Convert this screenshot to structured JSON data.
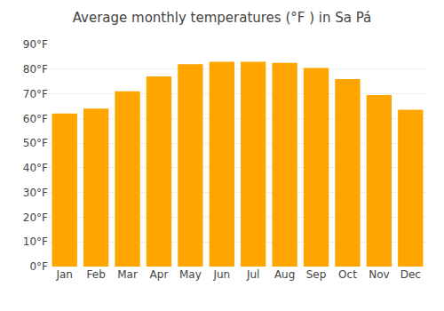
{
  "chart_data": {
    "type": "bar",
    "title": "Average monthly temperatures (°F ) in Sa Pá",
    "categories": [
      "Jan",
      "Feb",
      "Mar",
      "Apr",
      "May",
      "Jun",
      "Jul",
      "Aug",
      "Sep",
      "Oct",
      "Nov",
      "Dec"
    ],
    "values": [
      62,
      64,
      71,
      77,
      82,
      83,
      83,
      82.5,
      80.5,
      76,
      69.5,
      63.5
    ],
    "color": "#FFA500",
    "ylim": [
      0,
      90
    ],
    "yticks": [
      {
        "value": 0,
        "label": "0°F"
      },
      {
        "value": 10,
        "label": "10°F"
      },
      {
        "value": 20,
        "label": "20°F"
      },
      {
        "value": 30,
        "label": "30°F"
      },
      {
        "value": 40,
        "label": "40°F"
      },
      {
        "value": 50,
        "label": "50°F"
      },
      {
        "value": 60,
        "label": "60°F"
      },
      {
        "value": 70,
        "label": "70°F"
      },
      {
        "value": 80,
        "label": "80°F"
      },
      {
        "value": 90,
        "label": "90°F"
      }
    ],
    "grid": true
  }
}
